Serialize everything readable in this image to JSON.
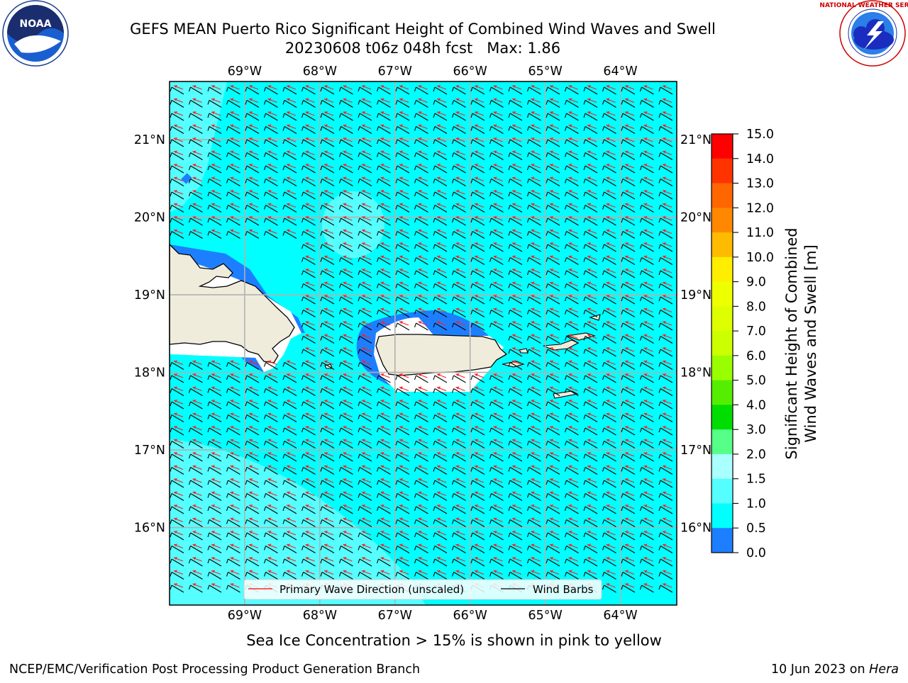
{
  "header": {
    "title_line1": "GEFS MEAN Puerto Rico Significant Height of Combined Wind Waves and Swell",
    "title_line2": "20230608 t06z 048h fcst   Max: 1.86"
  },
  "logos": {
    "noaa_text": "NOAA",
    "noaa_ring": "NATIONAL OCEANIC AND ATMOSPHERIC ADMINISTRATION · U.S. DEPARTMENT OF COMMERCE",
    "nws_ring": "NATIONAL WEATHER SERVICE"
  },
  "map": {
    "lon_labels": [
      "69°W",
      "68°W",
      "67°W",
      "66°W",
      "65°W",
      "64°W"
    ],
    "lat_labels": [
      "21°N",
      "20°N",
      "19°N",
      "18°N",
      "17°N",
      "16°N"
    ],
    "lon_values": [
      -69,
      -68,
      -67,
      -66,
      -65,
      -64
    ],
    "lat_values": [
      21,
      20,
      19,
      18,
      17,
      16
    ],
    "extent": {
      "lon_min": -70.0,
      "lon_max": -63.25,
      "lat_min": 15.0,
      "lat_max": 21.75
    },
    "colors": {
      "land": "#efecdc",
      "sea": "#00ffff",
      "sea_light": "#55ffff",
      "shallow": "#1d7fff",
      "grid": "#b0b0b0"
    }
  },
  "legend": {
    "items": [
      {
        "label": "Primary Wave Direction (unscaled)",
        "color": "#ff0000"
      },
      {
        "label": "Wind Barbs",
        "color": "#000000"
      }
    ]
  },
  "colorbar": {
    "label_line1": "Significant Height of Combined",
    "label_line2": "Wind Waves and Swell [m]",
    "ticks": [
      "15.0",
      "14.0",
      "13.0",
      "12.0",
      "11.0",
      "10.0",
      "9.0",
      "8.0",
      "7.0",
      "6.0",
      "5.0",
      "4.0",
      "3.0",
      "2.0",
      "1.5",
      "1.0",
      "0.5",
      "0.0"
    ],
    "colors": [
      "#ff0000",
      "#ff3300",
      "#ff6600",
      "#ff8800",
      "#ffbb00",
      "#ffee00",
      "#eeff00",
      "#ddff00",
      "#ccff00",
      "#99ff00",
      "#55ee00",
      "#00dd00",
      "#55ff88",
      "#aaffff",
      "#55ffff",
      "#00ffff",
      "#1d7fff",
      "#0000ff"
    ]
  },
  "footer": {
    "note": "Sea Ice Concentration > 15% is shown in pink to yellow",
    "left": "NCEP/EMC/Verification Post Processing Product Generation Branch",
    "right_date": "10 Jun 2023 on ",
    "right_host": "Hera"
  }
}
